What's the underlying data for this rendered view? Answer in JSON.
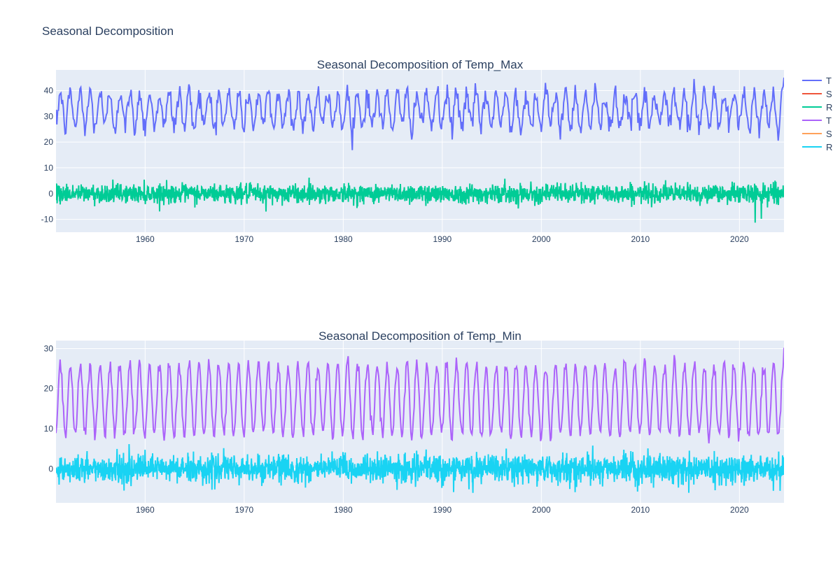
{
  "figure_title": "Seasonal Decomposition",
  "colors": {
    "plot_bg": "#E5ECF6",
    "grid": "#ffffff",
    "text": "#2a3f5f"
  },
  "legend": [
    {
      "label": "T",
      "color": "#636EFA"
    },
    {
      "label": "S",
      "color": "#EF553B"
    },
    {
      "label": "R",
      "color": "#00CC96"
    },
    {
      "label": "T",
      "color": "#AB63FA"
    },
    {
      "label": "S",
      "color": "#FFA15A"
    },
    {
      "label": "R",
      "color": "#19D3F3"
    }
  ],
  "chart_data": [
    {
      "type": "line",
      "title": "Seasonal Decomposition of Temp_Max",
      "x_range": [
        1951,
        2024.5
      ],
      "x_ticks": [
        1960,
        1970,
        1980,
        1990,
        2000,
        2010,
        2020
      ],
      "ylim": [
        -15,
        48
      ],
      "y_ticks": [
        -10,
        0,
        10,
        20,
        30,
        40
      ],
      "series": [
        {
          "legend_label": "T",
          "color": "#636EFA",
          "model": "seasonal",
          "mean": 32.5,
          "amplitude": 6.5,
          "noise": 2.2,
          "peak_max": 45
        },
        {
          "legend_label": "S",
          "color": "#EF553B",
          "model": "flat",
          "mean": 0
        },
        {
          "legend_label": "R",
          "color": "#00CC96",
          "model": "noise",
          "mean": 0,
          "noise": 1.8,
          "outliers": [
            [
              2021.6,
              -11.3
            ],
            [
              2022.2,
              -9.8
            ],
            [
              1972.2,
              -7
            ],
            [
              2023.6,
              5
            ]
          ]
        }
      ]
    },
    {
      "type": "line",
      "title": "Seasonal Decomposition of Temp_Min",
      "x_range": [
        1951,
        2024.5
      ],
      "x_ticks": [
        1960,
        1970,
        1980,
        1990,
        2000,
        2010,
        2020
      ],
      "ylim": [
        -8.5,
        32
      ],
      "y_ticks": [
        0,
        10,
        20,
        30
      ],
      "series": [
        {
          "legend_label": "T",
          "color": "#AB63FA",
          "model": "seasonal",
          "mean": 17.3,
          "amplitude": 8.8,
          "noise": 1.0,
          "peak_max": 30.2
        },
        {
          "legend_label": "S",
          "color": "#FFA15A",
          "model": "flat",
          "mean": 0
        },
        {
          "legend_label": "R",
          "color": "#19D3F3",
          "model": "noise",
          "mean": 0,
          "noise": 1.7,
          "outliers": [
            [
              1993.1,
              -6
            ],
            [
              2005.2,
              5.8
            ],
            [
              2024.1,
              -5.5
            ]
          ]
        }
      ]
    }
  ]
}
